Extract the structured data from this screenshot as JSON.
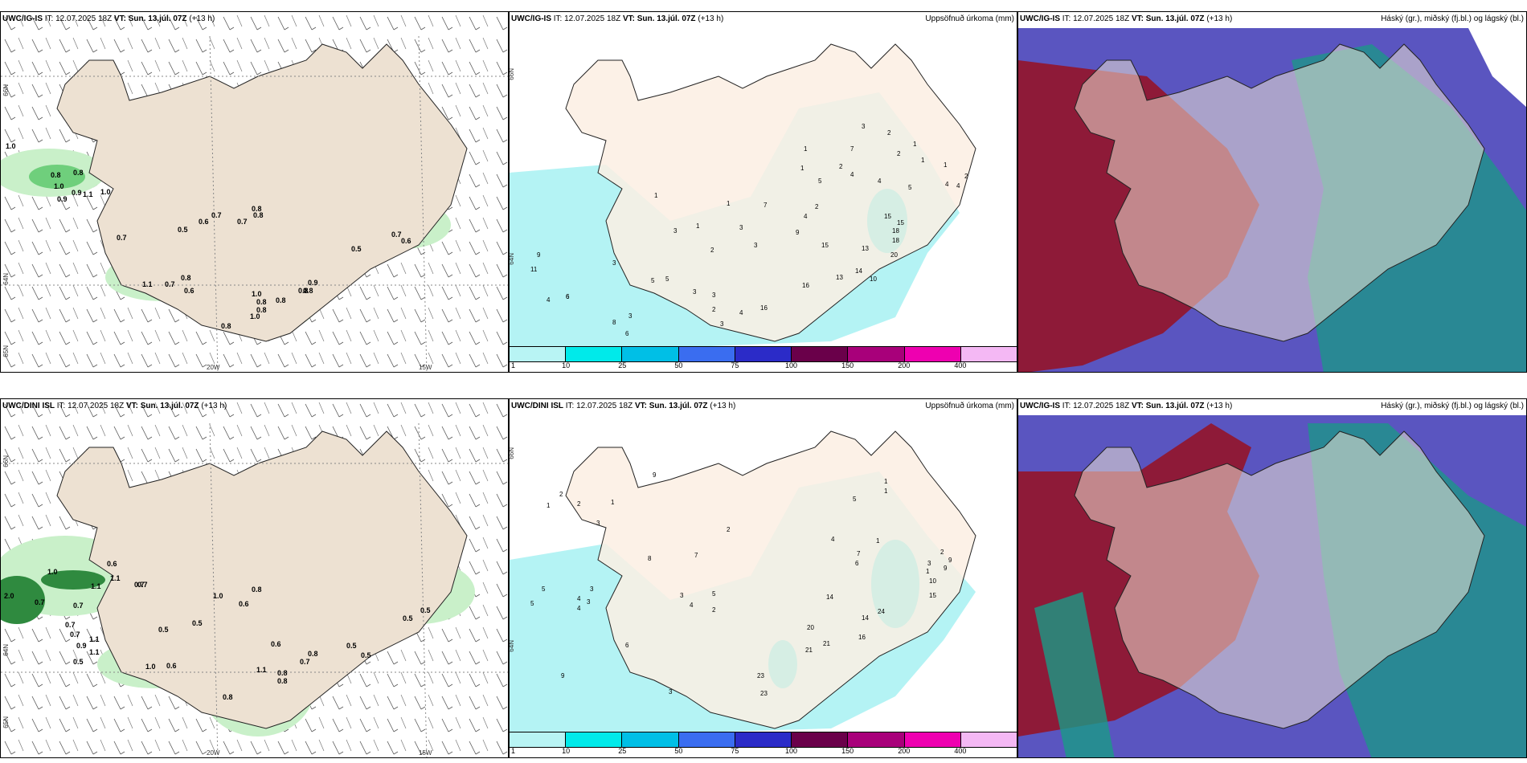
{
  "panels": {
    "wind_ig": {
      "model": "UWC/IG-IS",
      "it": "IT: 12.07.2025 18Z",
      "vt": "VT: Sun. 13.júl. 07Z",
      "lead": "(+13 h)",
      "lat_labels": [
        "66N",
        "64N",
        "65N"
      ],
      "lon_labels": [
        "20W",
        "15W",
        "25W"
      ],
      "values": [
        "1.0",
        "0.8",
        "0.8",
        "1.0",
        "0.9",
        "1.1",
        "0.9",
        "1.0",
        "0.7",
        "0.5",
        "0.6",
        "0.7",
        "0.8",
        "0.7",
        "0.5",
        "0.7",
        "0.6",
        "1.1",
        "0.7",
        "0.8",
        "0.6",
        "1.0",
        "0.8",
        "0.8",
        "1.0",
        "0.8",
        "0.8",
        "0.9",
        "0.8",
        "0.8",
        "0.8"
      ]
    },
    "precip_ig": {
      "model": "UWC/IG-IS",
      "it": "IT: 12.07.2025 18Z",
      "vt": "VT: Sun. 13.júl. 07Z",
      "lead": "(+13 h)",
      "right_title": "Uppsöfnuð úrkoma (mm)",
      "lat_labels": [
        "66N",
        "64N"
      ],
      "values": [
        "3",
        "2",
        "1",
        "1",
        "7",
        "2",
        "1",
        "1",
        "4",
        "4",
        "2",
        "5",
        "4",
        "4",
        "2",
        "5",
        "1",
        "7",
        "4",
        "2",
        "1",
        "1",
        "3",
        "3",
        "9",
        "15",
        "15",
        "18",
        "18",
        "20",
        "15",
        "13",
        "13",
        "16",
        "10",
        "14",
        "1",
        "3",
        "11",
        "9",
        "6",
        "3",
        "5",
        "5",
        "3",
        "3",
        "2",
        "4",
        "3",
        "2",
        "16",
        "6",
        "8",
        "4",
        "3",
        "6"
      ]
    },
    "cloud_ig": {
      "model": "UWC/IG-IS",
      "it": "IT: 12.07.2025 18Z",
      "vt": "VT: Sun. 13.júl. 07Z",
      "lead": "(+13 h)",
      "right_title": "Háský (gr.), miðský (fj.bl.) og lágský (bl.)"
    },
    "wind_dini": {
      "model": "UWC/DINI ISL",
      "it": "IT: 12.07.2025 18Z",
      "vt": "VT: Sun. 13.júl. 07Z",
      "lead": "(+13 h)",
      "lat_labels": [
        "66N",
        "64N",
        "65N"
      ],
      "lon_labels": [
        "20W",
        "15W",
        "25W"
      ],
      "values": [
        "2.0",
        "0.7",
        "1.0",
        "0.7",
        "1.1",
        "1.1",
        "0.6",
        "0.7",
        "0.7",
        "0.7",
        "1.1",
        "0.9",
        "0.5",
        "1.1",
        "0.5",
        "1.0",
        "0.6",
        "0.5",
        "0.6",
        "1.0",
        "0.8",
        "0.7",
        "0.6",
        "1.1",
        "0.8",
        "0.8",
        "0.7",
        "0.8",
        "0.5",
        "0.5",
        "0.5",
        "0.5",
        "0.8"
      ]
    },
    "precip_dini": {
      "model": "UWC/DINI ISL",
      "it": "IT: 12.07.2025 18Z",
      "vt": "VT: Sun. 13.júl. 07Z",
      "lead": "(+13 h)",
      "right_title": "Uppsöfnuð úrkoma (mm)",
      "lat_labels": [
        "66N",
        "64N"
      ],
      "values": [
        "1",
        "1",
        "2",
        "5",
        "4",
        "7",
        "1",
        "6",
        "2",
        "3",
        "1",
        "9",
        "10",
        "9",
        "15",
        "21",
        "23",
        "14",
        "24",
        "16",
        "20",
        "21",
        "14",
        "23",
        "5",
        "5",
        "4",
        "3",
        "4",
        "1",
        "2",
        "2",
        "1",
        "3",
        "9",
        "8",
        "7",
        "3",
        "9",
        "6",
        "5",
        "3",
        "2",
        "4",
        "3"
      ]
    },
    "cloud_dini": {
      "model": "UWC/IG-IS",
      "it": "IT: 12.07.2025 18Z",
      "vt": "VT: Sun. 13.júl. 07Z",
      "lead": "(+13 h)",
      "right_title": "Háský (gr.), miðský (fj.bl.) og lágský (bl.)"
    }
  },
  "colorbar": {
    "labels": [
      "1",
      "10",
      "25",
      "50",
      "75",
      "100",
      "150",
      "200",
      "400"
    ],
    "colors": [
      "#b8f4f4",
      "#00eaea",
      "#00bfe6",
      "#3a6df0",
      "#2b2bc8",
      "#6a004a",
      "#a8007a",
      "#ee00b0",
      "#f4b8f4"
    ]
  },
  "colors": {
    "land": "#ede1d2",
    "precip_land": "#fbeee3",
    "sea_precip": "#b4f3f4",
    "cloud_low": "#5a55c0",
    "cloud_high": "#8e1a38",
    "cloud_mid": "#1a9a86"
  }
}
